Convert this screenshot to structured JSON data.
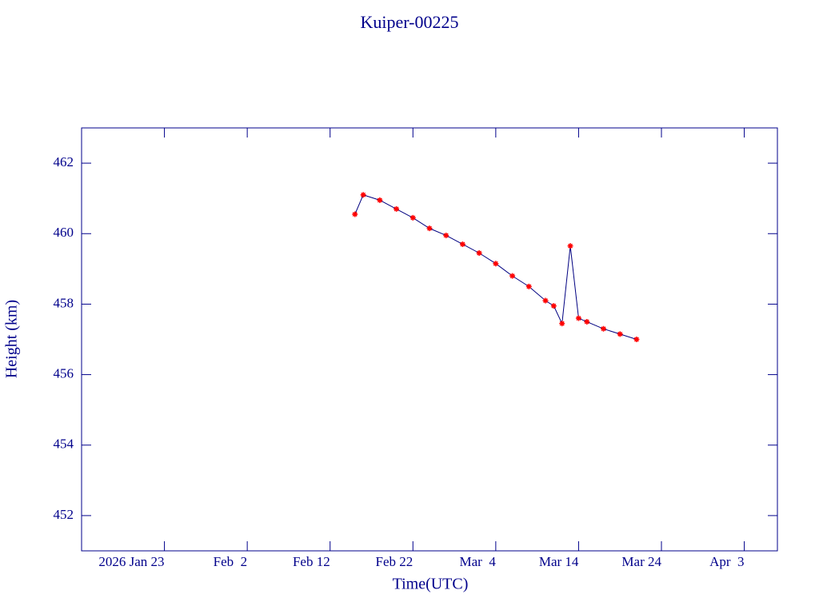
{
  "chart_data": {
    "type": "line",
    "title": "Kuiper-00225",
    "xlabel": "Time(UTC)",
    "ylabel": "Height (km)",
    "x": [
      "2026-02-15",
      "2026-02-16",
      "2026-02-18",
      "2026-02-20",
      "2026-02-22",
      "2026-02-24",
      "2026-02-26",
      "2026-02-28",
      "2026-03-02",
      "2026-03-04",
      "2026-03-06",
      "2026-03-08",
      "2026-03-10",
      "2026-03-11",
      "2026-03-12",
      "2026-03-13",
      "2026-03-14",
      "2026-03-15",
      "2026-03-17",
      "2026-03-19",
      "2026-03-21"
    ],
    "series": [
      {
        "name": "Height",
        "color": "#000080",
        "marker_color": "#ff0000",
        "values": [
          460.55,
          461.1,
          460.95,
          460.7,
          460.45,
          460.15,
          459.95,
          459.7,
          459.45,
          459.15,
          458.8,
          458.5,
          458.1,
          457.95,
          457.45,
          459.65,
          457.6,
          457.5,
          457.3,
          457.15,
          457.0
        ]
      }
    ],
    "xlim": [
      "2026-01-13",
      "2026-04-07"
    ],
    "xticks": [
      {
        "value": "2026-01-23",
        "label": "2026 Jan 23"
      },
      {
        "value": "2026-02-02",
        "label": "Feb  2"
      },
      {
        "value": "2026-02-12",
        "label": "Feb 12"
      },
      {
        "value": "2026-02-22",
        "label": "Feb 22"
      },
      {
        "value": "2026-03-04",
        "label": "Mar  4"
      },
      {
        "value": "2026-03-14",
        "label": "Mar 14"
      },
      {
        "value": "2026-03-24",
        "label": "Mar 24"
      },
      {
        "value": "2026-04-03",
        "label": "Apr  3"
      }
    ],
    "ylim": [
      451,
      463
    ],
    "yticks": [
      452,
      454,
      456,
      458,
      460,
      462
    ],
    "axis_color": "#00008b"
  }
}
